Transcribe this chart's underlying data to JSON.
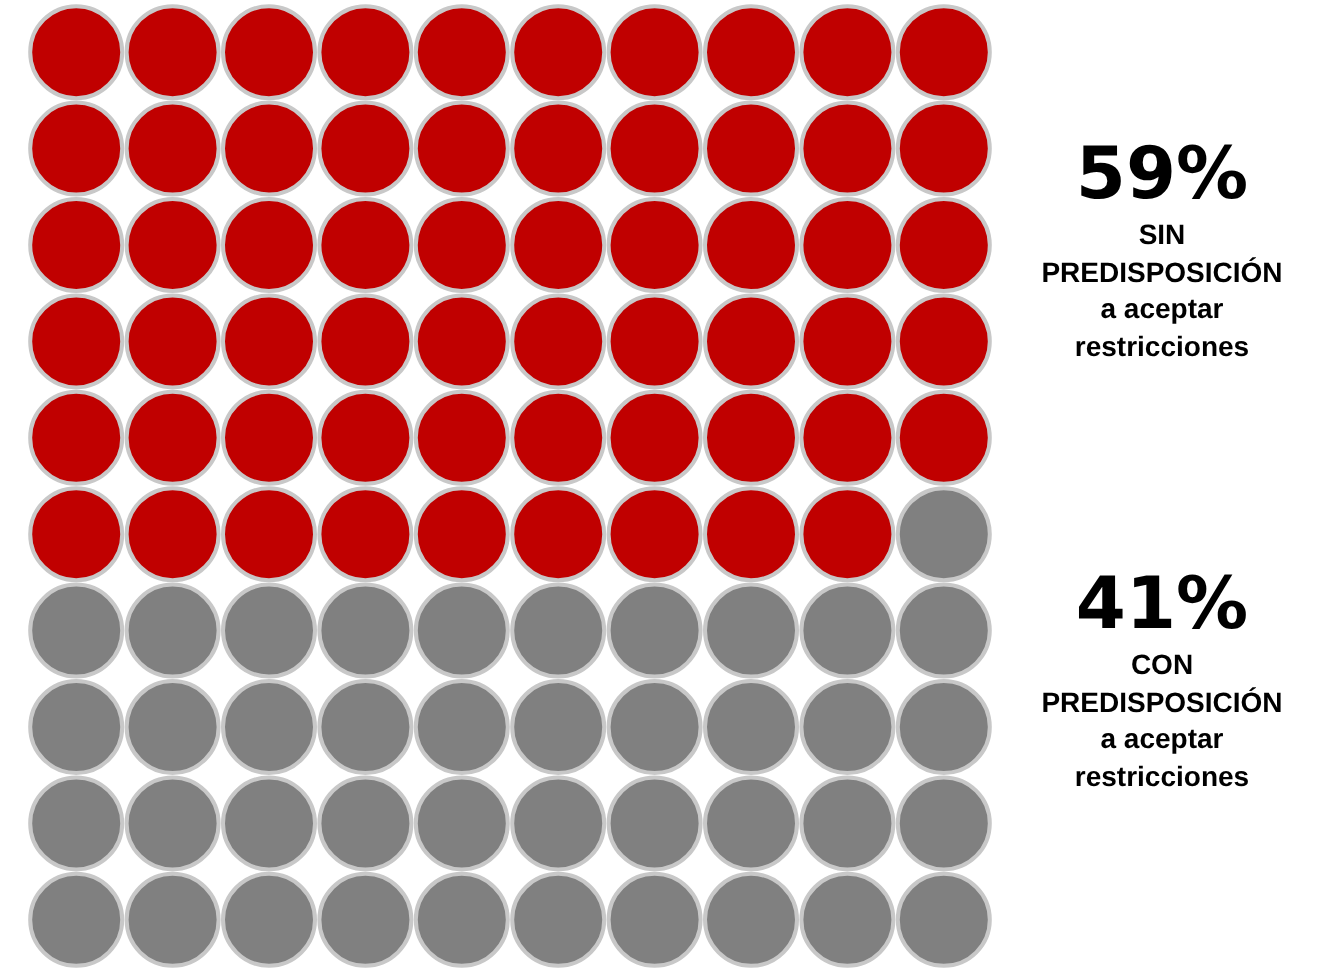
{
  "chart_data": {
    "type": "other",
    "categories": [
      "SIN\nPREDISPOSICIÓN\na aceptar\nrestricciones",
      "CON\nPREDISPOSICIÓN\na aceptar\nrestricciones"
    ],
    "values": [
      59,
      41
    ],
    "value_labels": [
      "59%",
      "41%"
    ],
    "colors": [
      "#c00000",
      "#808080"
    ]
  }
}
